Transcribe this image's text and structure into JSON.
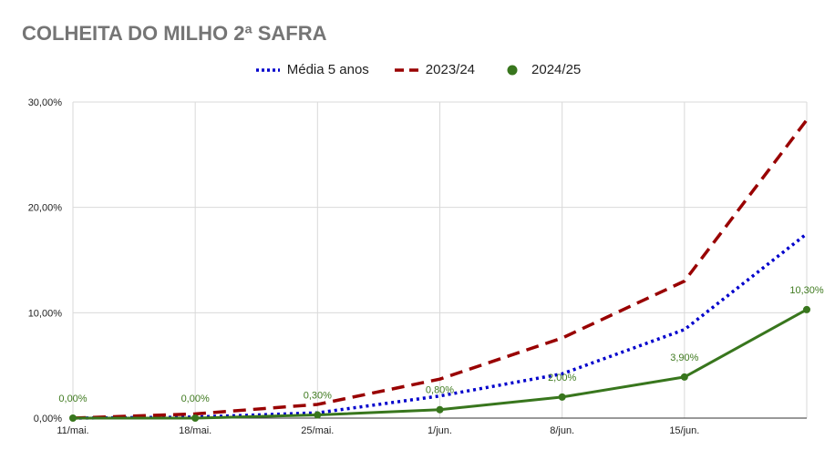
{
  "chart_data": {
    "type": "line",
    "title": "COLHEITA DO MILHO 2ª SAFRA",
    "xlabel": "",
    "ylabel": "",
    "ylim": [
      0,
      30
    ],
    "yticks": [
      "0,00%",
      "10,00%",
      "20,00%",
      "30,00%"
    ],
    "ytick_values": [
      0,
      10,
      20,
      30
    ],
    "x_tick_labels": [
      "11/mai.",
      "18/mai.",
      "25/mai.",
      "1/jun.",
      "8/jun.",
      "15/jun."
    ],
    "x_points": 7,
    "legend_position": "top",
    "grid": true,
    "series": [
      {
        "name": "Média 5 anos",
        "color": "#0000cc",
        "style": "dotted",
        "values": [
          0.0,
          0.1,
          0.5,
          2.1,
          4.2,
          8.4,
          17.5
        ]
      },
      {
        "name": "2023/24",
        "color": "#990000",
        "style": "dashed",
        "values": [
          0.0,
          0.4,
          1.3,
          3.7,
          7.6,
          13.0,
          28.3
        ]
      },
      {
        "name": "2024/25",
        "color": "#38761d",
        "style": "solid",
        "marker": "circle",
        "values": [
          0.0,
          0.0,
          0.3,
          0.8,
          2.0,
          3.9,
          10.3
        ],
        "data_labels": [
          "0,00%",
          "0,00%",
          "0,30%",
          "0,80%",
          "2,00%",
          "3,90%",
          "10,30%"
        ]
      }
    ]
  }
}
